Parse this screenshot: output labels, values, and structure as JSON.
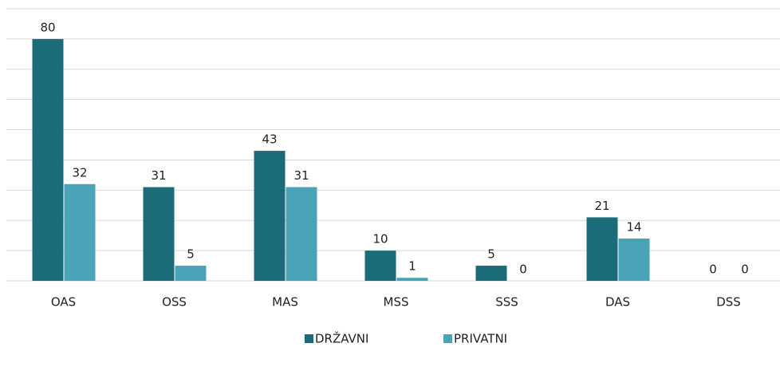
{
  "chart_data": {
    "type": "bar",
    "categories": [
      "OAS",
      "OSS",
      "MAS",
      "MSS",
      "SSS",
      "DAS",
      "DSS"
    ],
    "series": [
      {
        "name": "DRŽAVNI",
        "color": "#1b6b79",
        "values": [
          80,
          31,
          43,
          10,
          5,
          21,
          0
        ]
      },
      {
        "name": "PRIVATNI",
        "color": "#4aa3b7",
        "values": [
          32,
          5,
          31,
          1,
          0,
          14,
          0
        ]
      }
    ],
    "ylim": [
      0,
      90
    ],
    "yticks": [
      0,
      10,
      20,
      30,
      40,
      50,
      60,
      70,
      80,
      90
    ],
    "grid": true
  }
}
